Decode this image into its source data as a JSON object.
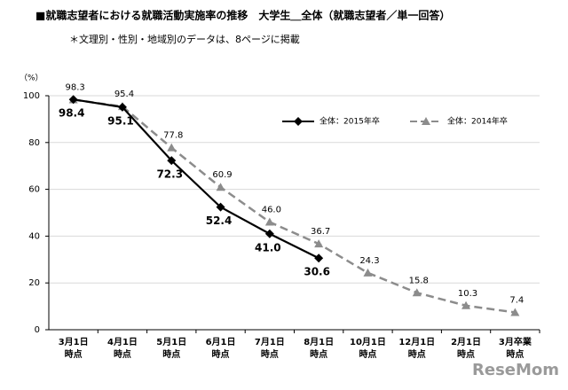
{
  "chart_data": {
    "type": "line",
    "title": "■就職志望者における就職活動実施率の推移　大学生＿全体（就職志望者／単一回答）",
    "subtitle": "＊文理別・性別・地域別のデータは、8ページに掲載",
    "y_unit": "（%）",
    "watermark": "ReseMom",
    "categories": [
      "3月1日\n時点",
      "4月1日\n時点",
      "5月1日\n時点",
      "6月1日\n時点",
      "7月1日\n時点",
      "8月1日\n時点",
      "10月1日\n時点",
      "12月1日\n時点",
      "2月1日\n時点",
      "3月卒業\n時点"
    ],
    "series": [
      {
        "name": "全体：2015年卒",
        "color": "#000000",
        "dashed": false,
        "marker": "diamond",
        "label_side": "below",
        "values": [
          98.4,
          95.1,
          72.3,
          52.4,
          41.0,
          30.6,
          null,
          null,
          null,
          null
        ],
        "value_labels": [
          "98.4",
          "95.1",
          "72.3",
          "52.4",
          "41.0",
          "30.6",
          null,
          null,
          null,
          null
        ]
      },
      {
        "name": "全体：2014年卒",
        "color": "#8c8c8c",
        "dashed": true,
        "marker": "triangle",
        "label_side": "above",
        "values": [
          98.3,
          95.4,
          77.8,
          60.9,
          46.0,
          36.7,
          24.3,
          15.8,
          10.3,
          7.4
        ],
        "value_labels": [
          "98.3",
          "95.4",
          "77.8",
          "60.9",
          "46.0",
          "36.7",
          "24.3",
          "15.8",
          "10.3",
          "7.4"
        ]
      }
    ],
    "ylim": [
      0,
      100
    ],
    "yticks": [
      0,
      20,
      40,
      60,
      80,
      100
    ],
    "grid": true,
    "legend": "top-right"
  }
}
